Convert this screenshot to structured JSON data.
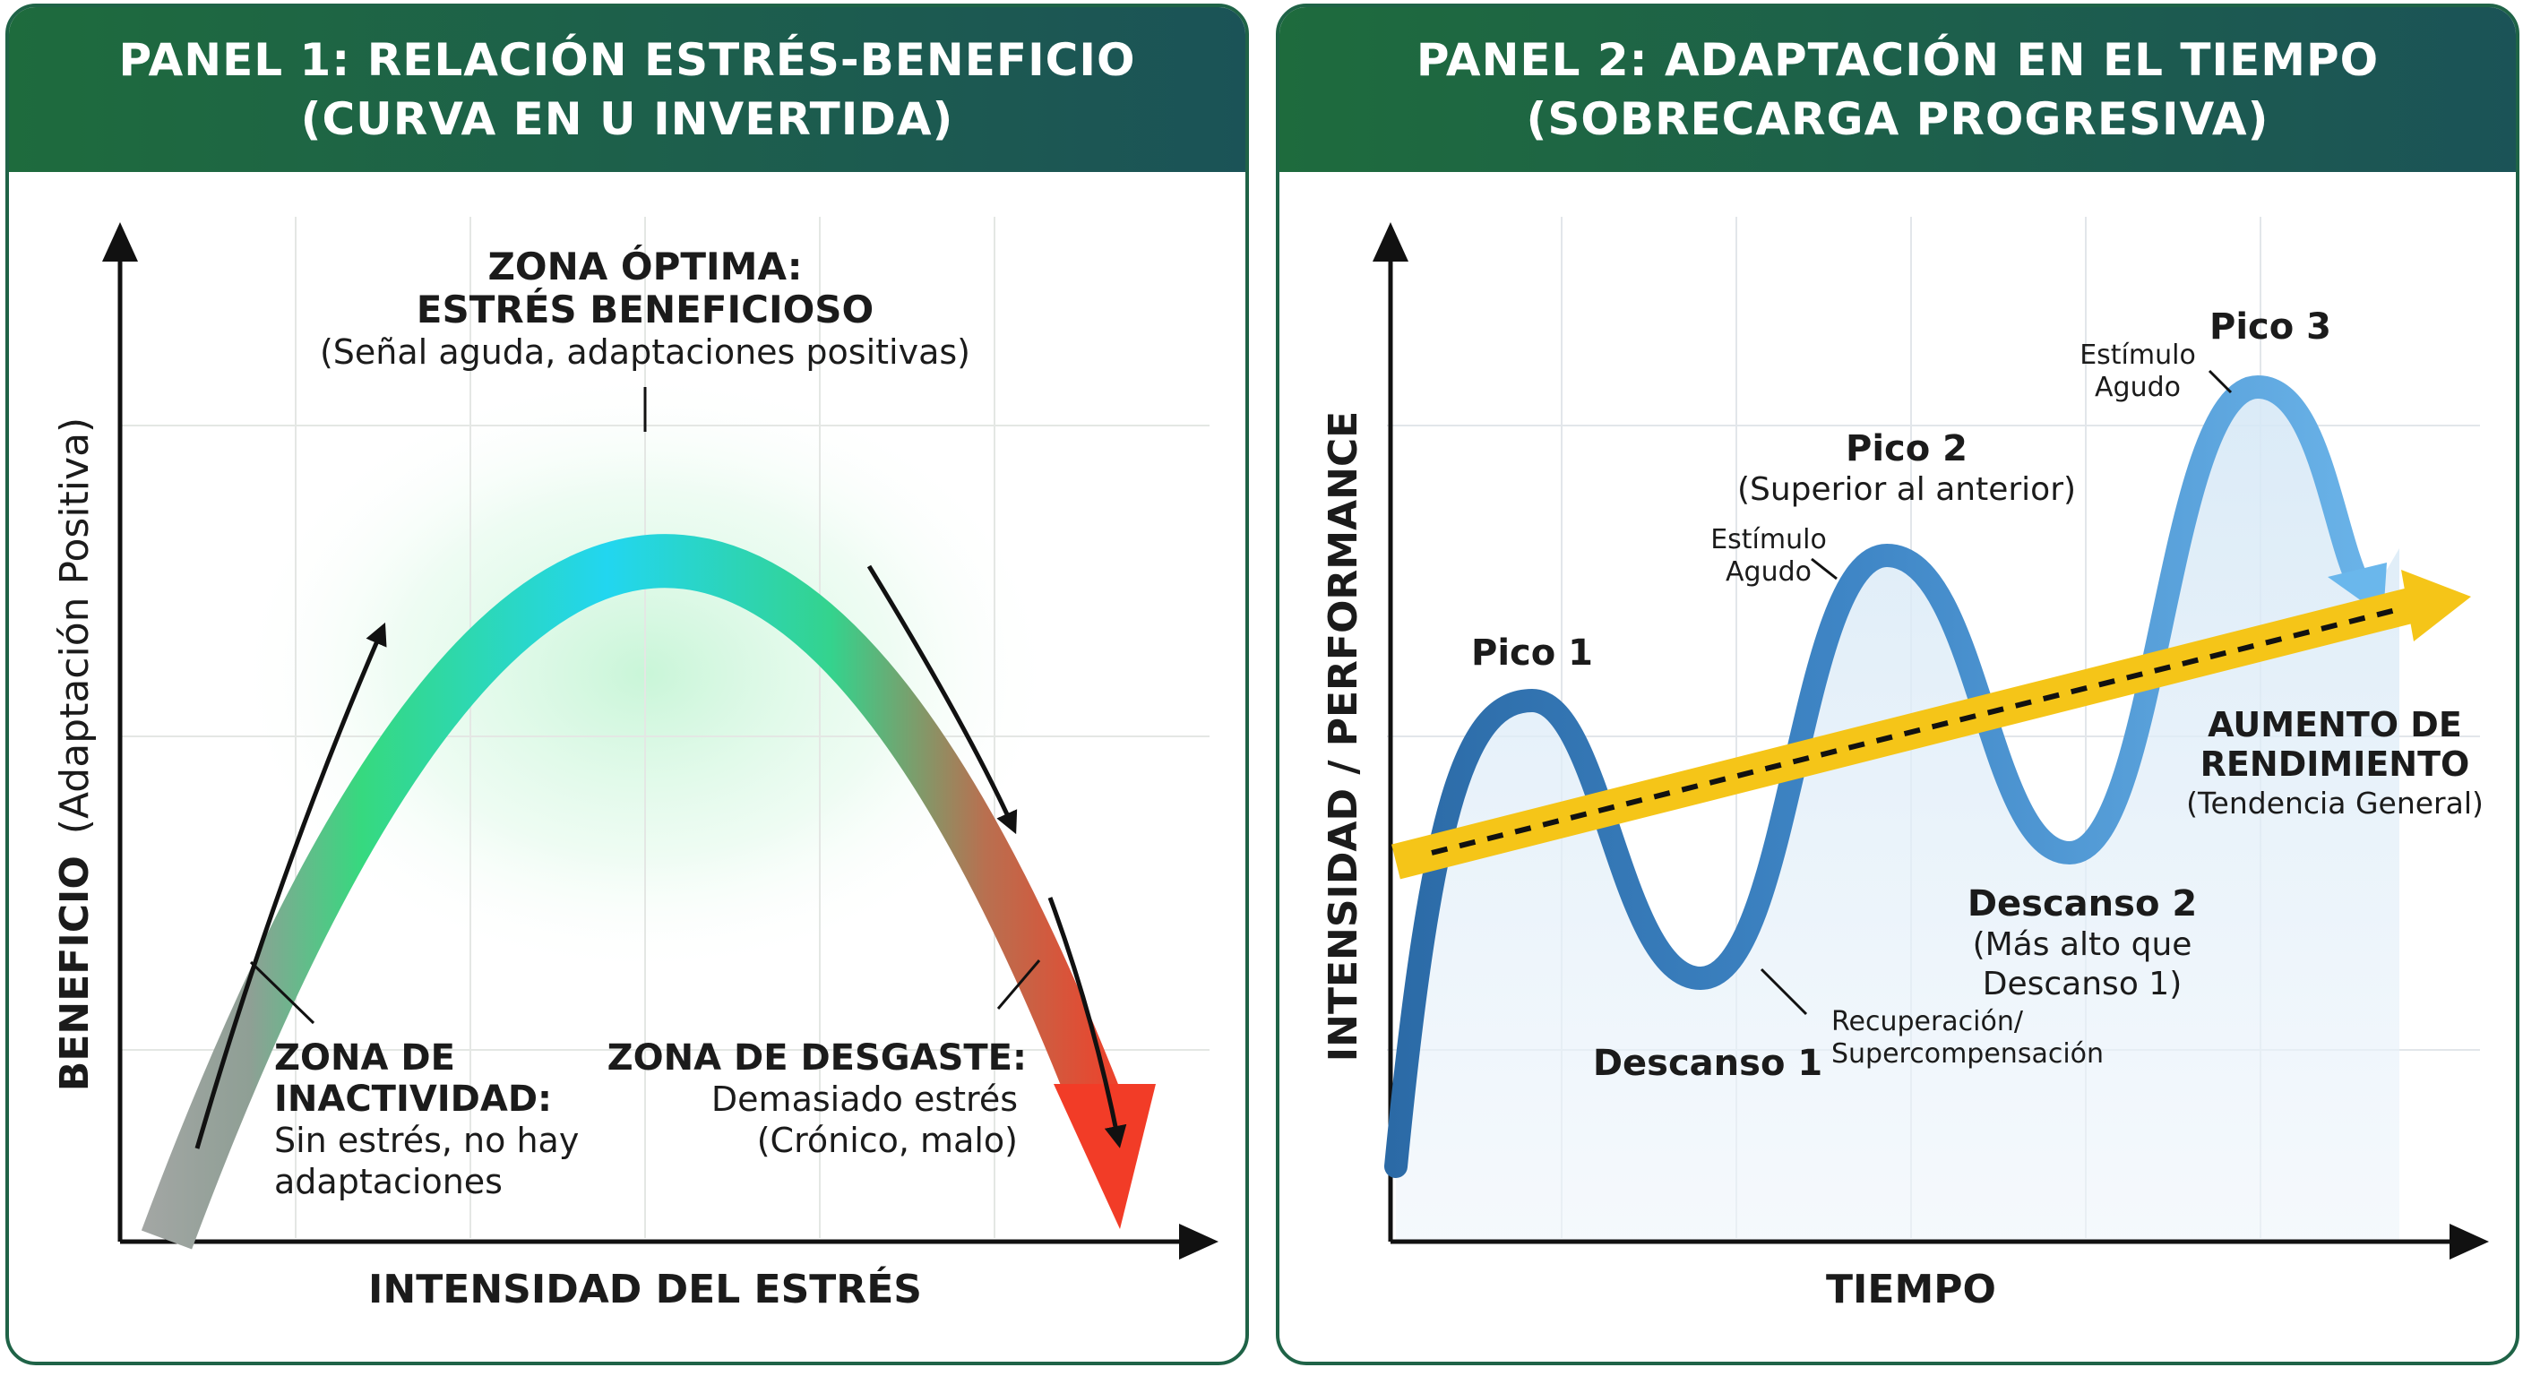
{
  "panel1": {
    "title_line1": "PANEL 1: RELACIÓN ESTRÉS-BENEFICIO",
    "title_line2": "(CURVA EN U INVERTIDA)",
    "y_axis_bold": "BENEFICIO",
    "y_axis_normal": "(Adaptación Positiva)",
    "x_axis": "INTENSIDAD DEL ESTRÉS",
    "zona_optima": {
      "line1": "ZONA ÓPTIMA:",
      "line2": "ESTRÉS BENEFICIOSO",
      "line3": "(Señal aguda, adaptaciones positivas)"
    },
    "zona_inactividad": {
      "line1": "ZONA DE",
      "line2": "INACTIVIDAD:",
      "line3": "Sin estrés, no hay",
      "line4": "adaptaciones"
    },
    "zona_desgaste": {
      "line1": "ZONA DE DESGASTE:",
      "line2": "Demasiado estrés",
      "line3": "(Crónico, malo)"
    },
    "colors": {
      "start": "#a6a6a6",
      "rise": "#3ddc84",
      "peak": "#22d3ee",
      "fall": "#2fc98a",
      "end": "#f03c2a"
    }
  },
  "panel2": {
    "title_line1": "PANEL 2: ADAPTACIÓN EN EL TIEMPO",
    "title_line2": "(SOBRECARGA PROGRESIVA)",
    "y_axis": "INTENSIDAD / PERFORMANCE",
    "x_axis": "TIEMPO",
    "pico1": "Pico 1",
    "pico2": "Pico 2",
    "pico2_sub": "(Superior al anterior)",
    "pico3": "Pico 3",
    "estimulo1_line1": "Estímulo",
    "estimulo1_line2": "Agudo",
    "estimulo2_line1": "Estímulo",
    "estimulo2_line2": "Agudo",
    "descanso1": "Descanso 1",
    "recuperacion_line1": "Recuperación/",
    "recuperacion_line2": "Supercompensación",
    "descanso2": "Descanso 2",
    "descanso2_line2": "(Más alto que",
    "descanso2_line3": "Descanso 1)",
    "aumento_line1": "AUMENTO DE",
    "aumento_line2": "RENDIMIENTO",
    "aumento_line3": "(Tendencia General)",
    "colors": {
      "wave_dark": "#2e6fa8",
      "wave_light": "#6ab3e8",
      "trend": "#f5c518"
    }
  }
}
